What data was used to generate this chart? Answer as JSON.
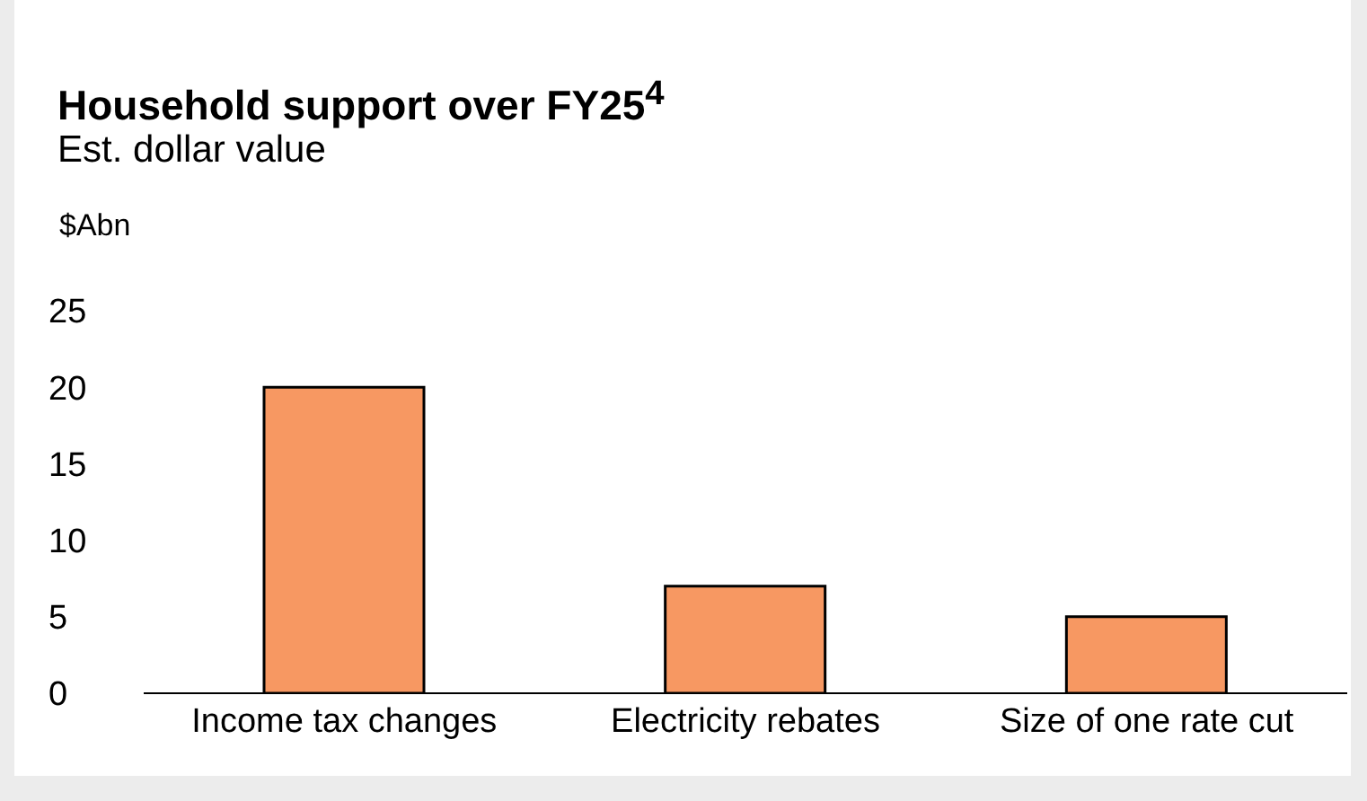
{
  "chart_data": {
    "type": "bar",
    "title": "Household support over FY25$^{4}$",
    "subtitle": "Est. dollar value",
    "ylabel": "$Abn",
    "categories": [
      "Income tax changes",
      "Electricity rebates",
      "Size of one rate cut"
    ],
    "values": [
      20,
      7,
      5
    ],
    "color": "#f79862",
    "ylim": [
      0,
      25
    ],
    "yticks": [
      0,
      5,
      10,
      15,
      20,
      25
    ],
    "grid": false
  }
}
